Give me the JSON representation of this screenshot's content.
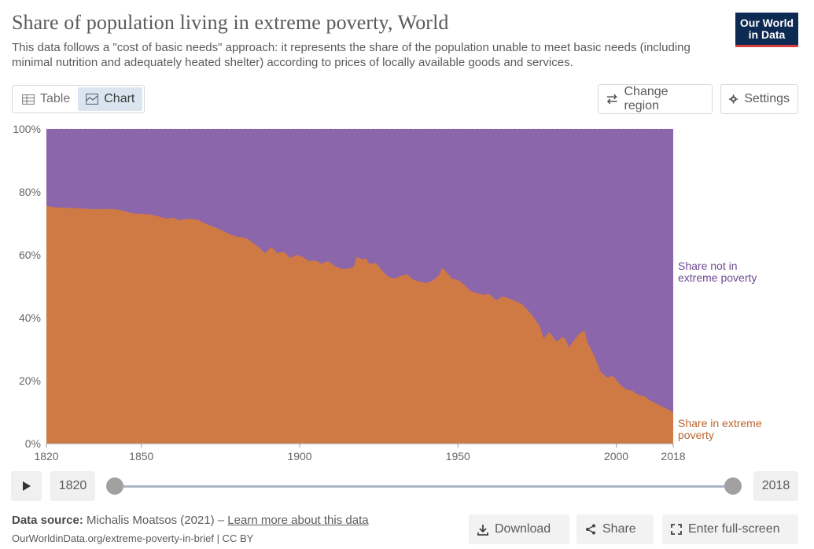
{
  "header": {
    "title": "Share of population living in extreme poverty, World",
    "subtitle": "This data follows a \"cost of basic needs\" approach: it represents the share of the population unable to meet basic needs (including minimal nutrition and adequately heated shelter) according to prices of locally available goods and services.",
    "logo_line1": "Our World",
    "logo_line2": "in Data"
  },
  "toolbar": {
    "table_label": "Table",
    "chart_label": "Chart",
    "change_region_label": "Change region",
    "settings_label": "Settings"
  },
  "colors": {
    "poverty": "#cf7a45",
    "not_poverty": "#8c66aa",
    "poverty_label": "#b8662f",
    "not_poverty_label": "#6f4a93"
  },
  "chart_data": {
    "type": "area",
    "stacked": true,
    "ylim": [
      0,
      100
    ],
    "xlim": [
      1820,
      2018
    ],
    "y_ticks": [
      "0%",
      "20%",
      "40%",
      "60%",
      "80%",
      "100%"
    ],
    "x_ticks": [
      "1820",
      "1850",
      "1900",
      "1950",
      "2000",
      "2018"
    ],
    "series": [
      {
        "name": "Share in extreme poverty",
        "points": [
          [
            1820,
            75.6
          ],
          [
            1822,
            75.2
          ],
          [
            1825,
            75.0
          ],
          [
            1830,
            74.8
          ],
          [
            1835,
            74.5
          ],
          [
            1840,
            74.6
          ],
          [
            1843,
            74.3
          ],
          [
            1845,
            73.8
          ],
          [
            1847,
            73.2
          ],
          [
            1850,
            73.0
          ],
          [
            1853,
            72.8
          ],
          [
            1855,
            72.3
          ],
          [
            1858,
            71.5
          ],
          [
            1860,
            71.8
          ],
          [
            1862,
            71.0
          ],
          [
            1865,
            71.5
          ],
          [
            1868,
            71.1
          ],
          [
            1870,
            70.0
          ],
          [
            1873,
            68.8
          ],
          [
            1875,
            68.0
          ],
          [
            1878,
            66.5
          ],
          [
            1880,
            65.8
          ],
          [
            1883,
            65.3
          ],
          [
            1885,
            64.0
          ],
          [
            1887,
            62.5
          ],
          [
            1889,
            60.5
          ],
          [
            1891,
            62.5
          ],
          [
            1893,
            60.5
          ],
          [
            1895,
            61.0
          ],
          [
            1897,
            59.0
          ],
          [
            1899,
            60.0
          ],
          [
            1901,
            59.3
          ],
          [
            1903,
            58.0
          ],
          [
            1905,
            58.2
          ],
          [
            1907,
            57.2
          ],
          [
            1909,
            58.0
          ],
          [
            1911,
            56.5
          ],
          [
            1913,
            55.6
          ],
          [
            1915,
            55.6
          ],
          [
            1917,
            56.0
          ],
          [
            1918,
            59.3
          ],
          [
            1920,
            58.5
          ],
          [
            1921,
            59.0
          ],
          [
            1922,
            57.0
          ],
          [
            1924,
            57.5
          ],
          [
            1926,
            55.0
          ],
          [
            1928,
            53.0
          ],
          [
            1930,
            52.5
          ],
          [
            1932,
            53.3
          ],
          [
            1934,
            53.8
          ],
          [
            1936,
            52.0
          ],
          [
            1938,
            51.5
          ],
          [
            1940,
            51.0
          ],
          [
            1942,
            51.8
          ],
          [
            1944,
            53.5
          ],
          [
            1945,
            55.8
          ],
          [
            1946,
            55.0
          ],
          [
            1948,
            52.5
          ],
          [
            1950,
            52.0
          ],
          [
            1952,
            50.5
          ],
          [
            1954,
            48.5
          ],
          [
            1956,
            47.8
          ],
          [
            1958,
            47.3
          ],
          [
            1960,
            47.5
          ],
          [
            1962,
            45.5
          ],
          [
            1964,
            46.8
          ],
          [
            1966,
            46.2
          ],
          [
            1968,
            45.3
          ],
          [
            1970,
            44.5
          ],
          [
            1972,
            42.5
          ],
          [
            1974,
            40.0
          ],
          [
            1976,
            37.0
          ],
          [
            1977,
            33.5
          ],
          [
            1978,
            34.5
          ],
          [
            1979,
            35.5
          ],
          [
            1980,
            34.0
          ],
          [
            1981,
            32.5
          ],
          [
            1982,
            33.0
          ],
          [
            1983,
            34.0
          ],
          [
            1984,
            33.2
          ],
          [
            1985,
            30.5
          ],
          [
            1986,
            32.0
          ],
          [
            1988,
            34.5
          ],
          [
            1989,
            35.5
          ],
          [
            1990,
            35.8
          ],
          [
            1991,
            32.0
          ],
          [
            1993,
            28.0
          ],
          [
            1995,
            23.0
          ],
          [
            1997,
            21.0
          ],
          [
            1999,
            21.5
          ],
          [
            2001,
            19.0
          ],
          [
            2003,
            17.3
          ],
          [
            2005,
            16.8
          ],
          [
            2007,
            15.5
          ],
          [
            2009,
            15.0
          ],
          [
            2011,
            13.5
          ],
          [
            2013,
            12.5
          ],
          [
            2015,
            11.5
          ],
          [
            2017,
            10.5
          ],
          [
            2018,
            9.8
          ]
        ]
      },
      {
        "name": "Share not in extreme poverty",
        "note": "remainder to 100%"
      }
    ],
    "label_poverty": [
      "Share in extreme",
      "poverty"
    ],
    "label_not_poverty": [
      "Share not in",
      "extreme poverty"
    ]
  },
  "timeline": {
    "start_year": "1820",
    "end_year": "2018"
  },
  "footer": {
    "source_prefix": "Data source:",
    "source_text": "Michalis Moatsos (2021) –",
    "learn_more": "Learn more about this data",
    "url": "OurWorldinData.org/extreme-poverty-in-brief | CC BY",
    "download_label": "Download",
    "share_label": "Share",
    "fullscreen_label": "Enter full-screen"
  }
}
